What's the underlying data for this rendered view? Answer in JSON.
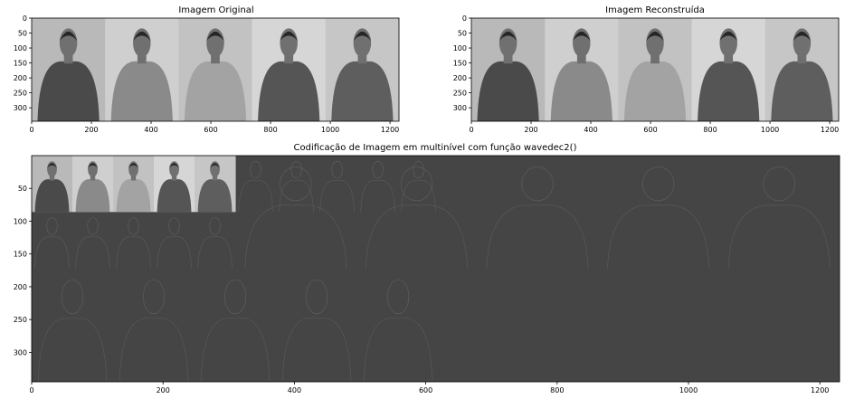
{
  "chart_data": [
    {
      "type": "image",
      "title": "Imagem Original",
      "xticks": [
        0,
        200,
        400,
        600,
        800,
        1000,
        1200
      ],
      "yticks": [
        0,
        50,
        100,
        150,
        200,
        250,
        300
      ],
      "xlim": [
        0,
        1230
      ],
      "ylim": [
        345,
        0
      ],
      "grayscale": true,
      "people": 5
    },
    {
      "type": "image",
      "title": "Imagem Reconstruída",
      "xticks": [
        0,
        200,
        400,
        600,
        800,
        1000,
        1200
      ],
      "yticks": [
        0,
        50,
        100,
        150,
        200,
        250,
        300
      ],
      "xlim": [
        0,
        1230
      ],
      "ylim": [
        345,
        0
      ],
      "grayscale": true,
      "people": 5
    },
    {
      "type": "image",
      "title": "Codificação de Imagem em multinível com função wavedec2()",
      "xticks": [
        0,
        200,
        400,
        600,
        800,
        1000,
        1200
      ],
      "yticks": [
        50,
        100,
        150,
        200,
        250,
        300
      ],
      "xlim": [
        0,
        1230
      ],
      "ylim": [
        345,
        0
      ],
      "grayscale": true,
      "approx_region": [
        0,
        310,
        0,
        86
      ],
      "people": 5
    }
  ]
}
